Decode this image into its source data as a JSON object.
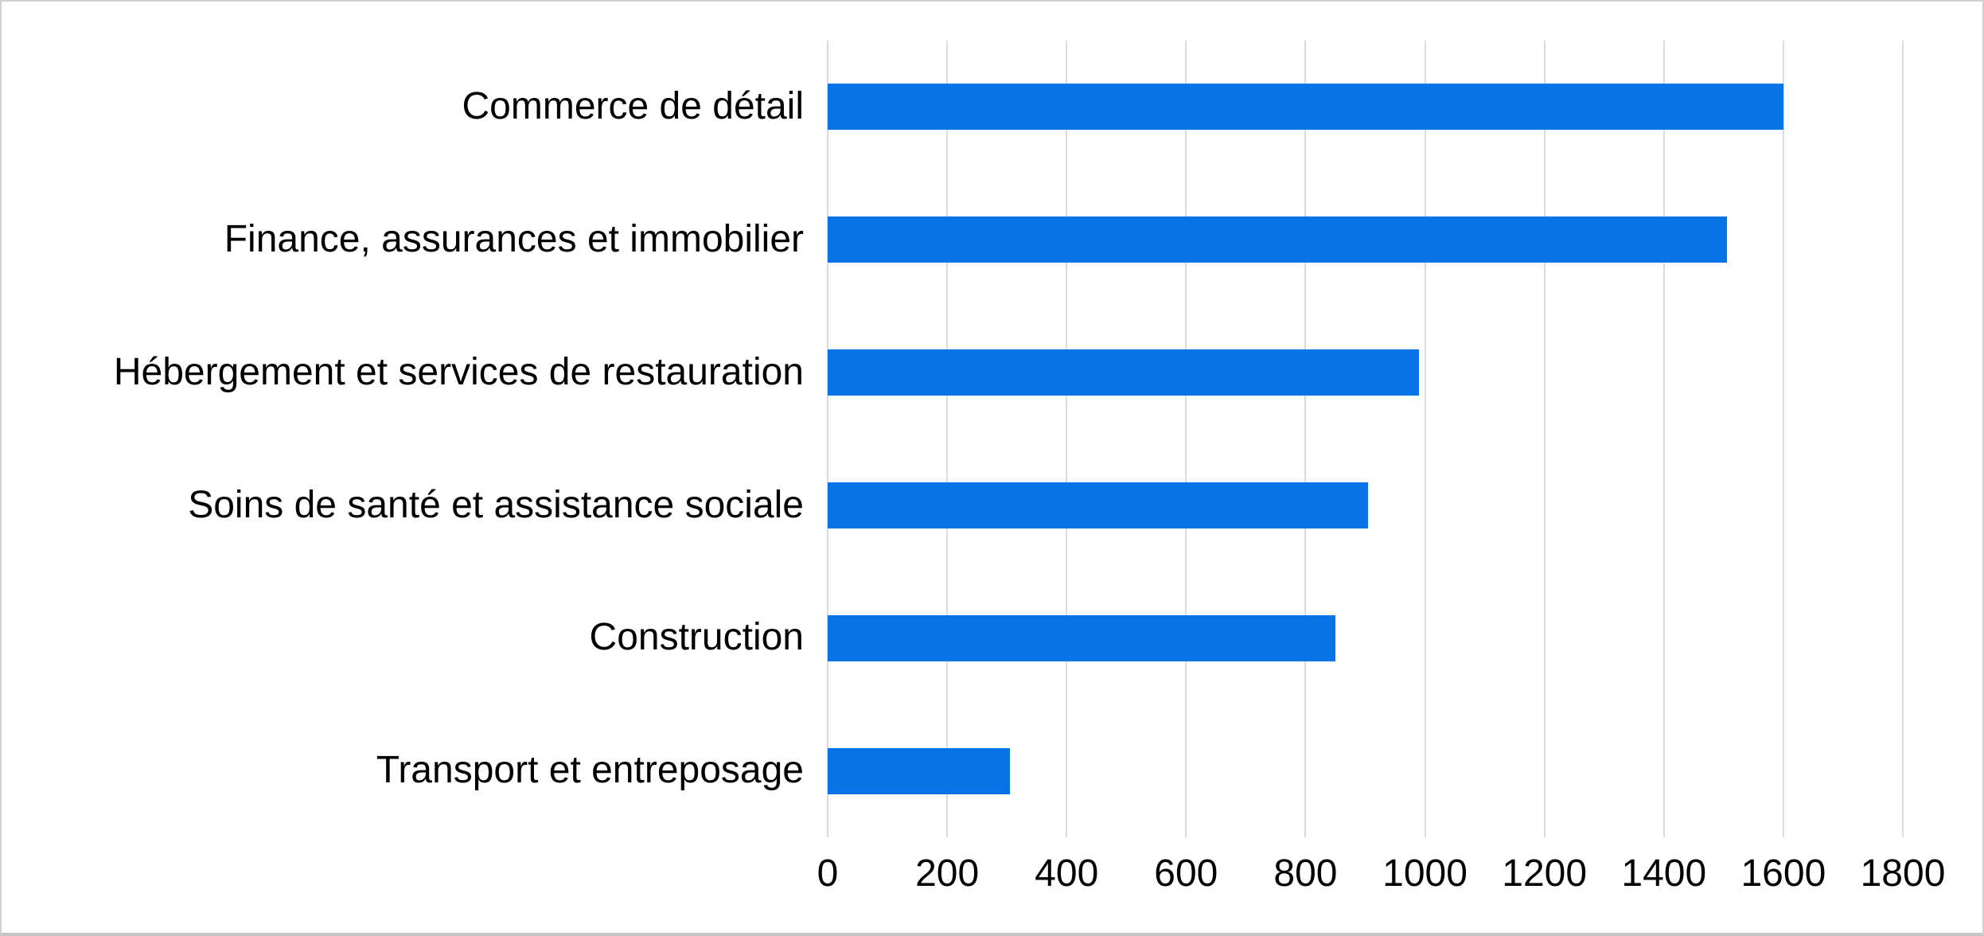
{
  "chart_data": {
    "type": "bar",
    "orientation": "horizontal",
    "title": "",
    "xlabel": "",
    "ylabel": "",
    "categories": [
      "Commerce de détail",
      "Finance, assurances et immobilier",
      "Hébergement et services de restauration",
      "Soins de santé et assistance sociale",
      "Construction",
      "Transport et entreposage"
    ],
    "values": [
      1600,
      1505,
      990,
      905,
      850,
      305
    ],
    "xlim": [
      0,
      1800
    ],
    "x_ticks": [
      0,
      200,
      400,
      600,
      800,
      1000,
      1200,
      1400,
      1600,
      1800
    ],
    "grid": true,
    "legend": false,
    "bar_color": "#0873E6",
    "gridline_color": "#DBDBDB",
    "background_color": "#FFFFFF",
    "text_color": "#000000",
    "frame_color": "#D1D1D1"
  }
}
